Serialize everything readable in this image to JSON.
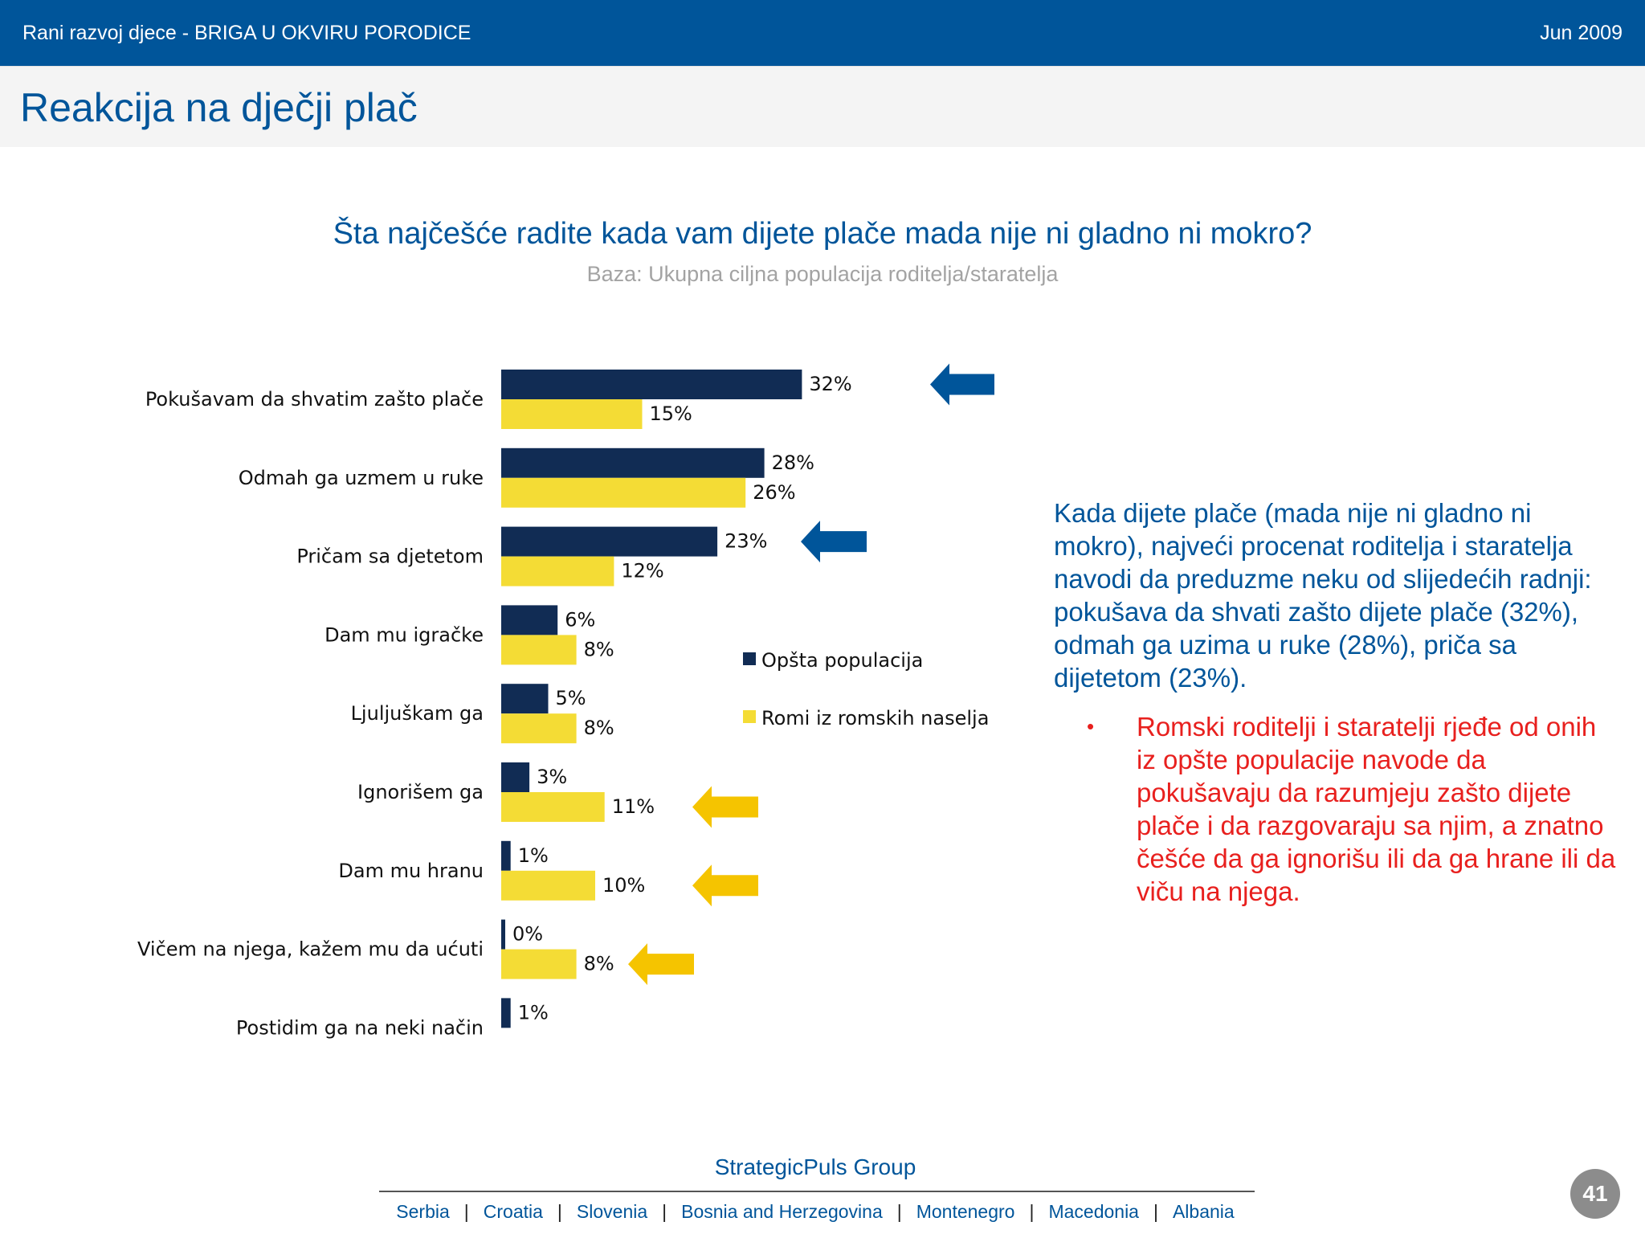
{
  "header": {
    "title": "Rani razvoj djece - BRIGA U OKVIRU PORODICE",
    "date": "Jun 2009"
  },
  "slide": {
    "title": "Reakcija na dječji plač"
  },
  "chart_data": {
    "type": "bar",
    "orientation": "horizontal",
    "title": "Šta najčešće radite kada vam dijete plače  mada nije ni gladno ni mokro?",
    "subtitle": "Baza: Ukupna ciljna populacija roditelja/staratelja",
    "categories": [
      "Pokušavam da shvatim zašto plače",
      "Odmah ga uzmem u ruke",
      "Pričam sa djetetom",
      "Dam mu igračke",
      "Ljuljuškam ga",
      "Ignorišem ga",
      "Dam mu hranu",
      "Vičem na njega, kažem mu da ućuti",
      "Postidim ga na neki način"
    ],
    "series": [
      {
        "name": "Opšta populacija",
        "color": "#112c54",
        "values": [
          32,
          28,
          23,
          6,
          5,
          3,
          1,
          0,
          1
        ],
        "labels": [
          "32%",
          "28%",
          "23%",
          "6%",
          "5%",
          "3%",
          "1%",
          "0%",
          "1%"
        ]
      },
      {
        "name": "Romi iz romskih naselja",
        "color": "#f4dc35",
        "values": [
          15,
          26,
          12,
          8,
          8,
          11,
          10,
          8,
          null
        ],
        "labels": [
          "15%",
          "26%",
          "12%",
          "8%",
          "8%",
          "11%",
          "10%",
          "8%",
          null
        ]
      }
    ],
    "legend": "right",
    "highlight_arrows": [
      {
        "category_index": 0,
        "series": 0,
        "color": "#00559a"
      },
      {
        "category_index": 2,
        "series": 0,
        "color": "#00559a"
      },
      {
        "category_index": 5,
        "series": 1,
        "color": "#f5c400"
      },
      {
        "category_index": 6,
        "series": 1,
        "color": "#f5c400"
      },
      {
        "category_index": 7,
        "series": 1,
        "color": "#f5c400"
      }
    ]
  },
  "summary": "Kada dijete plače (mada nije ni gladno ni mokro), najveći procenat roditelja i staratelja navodi da preduzme neku od slijedećih radnji: pokušava da shvati zašto dijete plače (32%), odmah ga uzima u ruke (28%), priča sa dijetetom (23%).",
  "bullet": {
    "marker": "•",
    "text": "Romski roditelji i staratelji rjeđe od onih iz opšte populacije navode da pokušavaju da razumjeju zašto dijete plače i da razgovaraju sa njim, a znatno češće da ga ignorišu ili da ga hrane ili da viču na njega."
  },
  "footer": {
    "brand": "StrategicPuls Group",
    "countries": [
      "Serbia",
      "Croatia",
      "Slovenia",
      "Bosnia and Herzegovina",
      "Montenegro",
      "Macedonia",
      "Albania"
    ],
    "separator": "|",
    "page": "41"
  }
}
